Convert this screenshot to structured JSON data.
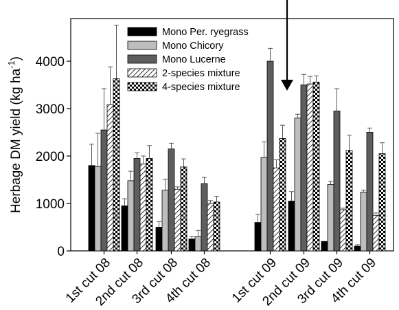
{
  "chart_data": {
    "type": "bar",
    "ylabel": "Herbage DM yield (kg ha",
    "ylabel_unit_exponent": "-1",
    "ylabel_close": ")",
    "ylim": [
      0,
      5000
    ],
    "yticks": [
      0,
      1000,
      2000,
      3000,
      4000
    ],
    "grid": false,
    "legend_position": "top-center",
    "categories": [
      "1st cut 08",
      "2nd cut 08",
      "3rd cut 08",
      "4th cut 08",
      "1st cut 09",
      "2nd cut 09",
      "3rd cut 09",
      "4th cut 09"
    ],
    "series": [
      {
        "name": "Mono Per. ryegrass",
        "fill": "solid-black",
        "values": [
          1800,
          950,
          500,
          250,
          600,
          1050,
          200,
          100
        ],
        "errors": [
          450,
          150,
          120,
          50,
          170,
          200,
          0,
          30
        ]
      },
      {
        "name": "Mono Chicory",
        "fill": "solid-light-gray",
        "values": [
          1780,
          1480,
          1280,
          300,
          1970,
          2800,
          1400,
          1240
        ],
        "errors": [
          700,
          200,
          230,
          130,
          330,
          80,
          70,
          40
        ]
      },
      {
        "name": "Mono Lucerne",
        "fill": "solid-dark-gray",
        "values": [
          2550,
          1950,
          2150,
          1420,
          4000,
          3500,
          2950,
          2500
        ],
        "errors": [
          870,
          120,
          120,
          130,
          270,
          220,
          470,
          90
        ]
      },
      {
        "name": "2-species mixture",
        "fill": "diagonal-hatch",
        "values": [
          3080,
          1830,
          1300,
          1000,
          1750,
          3520,
          870,
          750
        ],
        "errors": [
          800,
          170,
          50,
          60,
          170,
          160,
          30,
          50
        ]
      },
      {
        "name": "4-species mixture",
        "fill": "checkerboard",
        "values": [
          3630,
          1950,
          1770,
          1030,
          2370,
          3560,
          2120,
          2050
        ],
        "errors": [
          1130,
          270,
          170,
          120,
          280,
          130,
          320,
          230
        ]
      }
    ],
    "annotations": [
      {
        "type": "arrow",
        "direction": "down",
        "position": "above 2nd cut 09"
      }
    ]
  }
}
